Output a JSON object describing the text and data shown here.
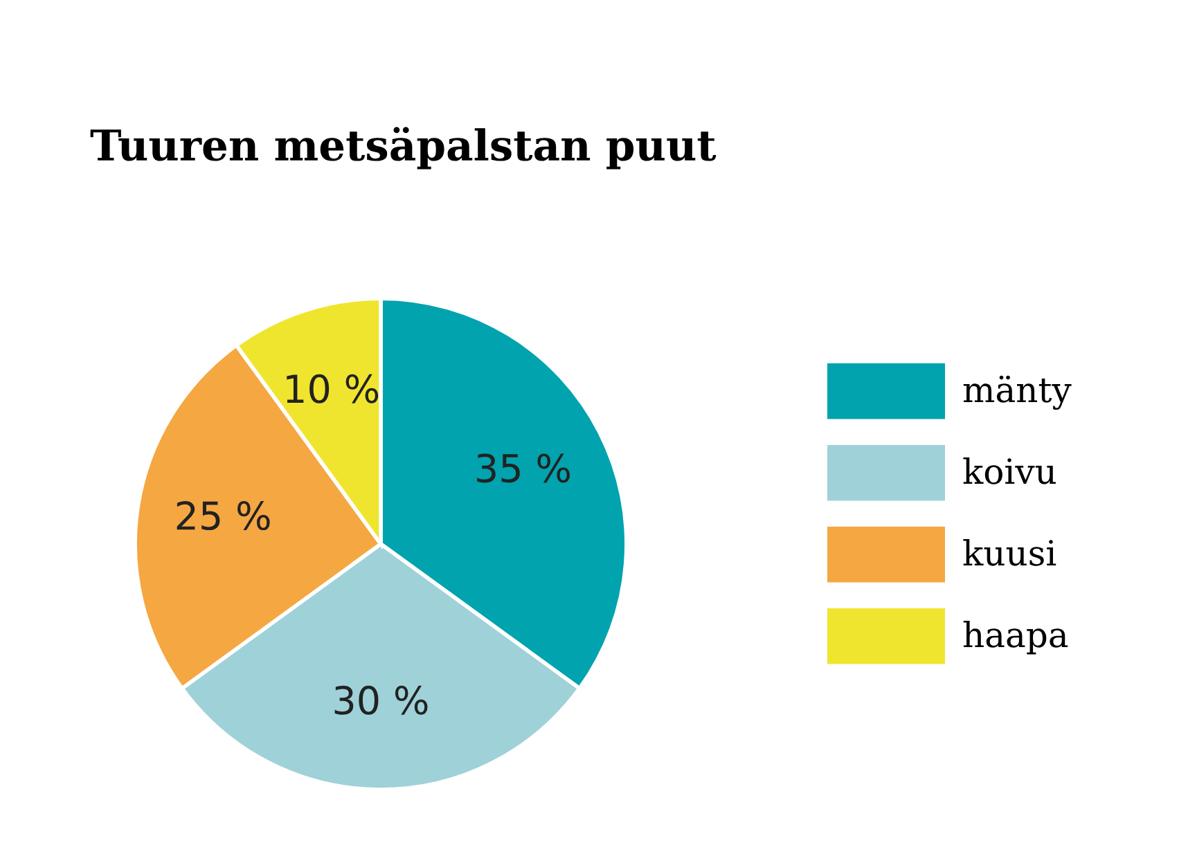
{
  "chart_data": {
    "type": "pie",
    "title": "Tuuren metsäpalstan puut",
    "categories": [
      "mänty",
      "koivu",
      "kuusi",
      "haapa"
    ],
    "values": [
      35,
      30,
      25,
      10
    ],
    "colors": [
      "#00a3ae",
      "#9fd1d8",
      "#f5a742",
      "#f0e52e"
    ],
    "value_labels": [
      "35 %",
      "30 %",
      "25 %",
      "10 %"
    ],
    "legend": "right"
  }
}
